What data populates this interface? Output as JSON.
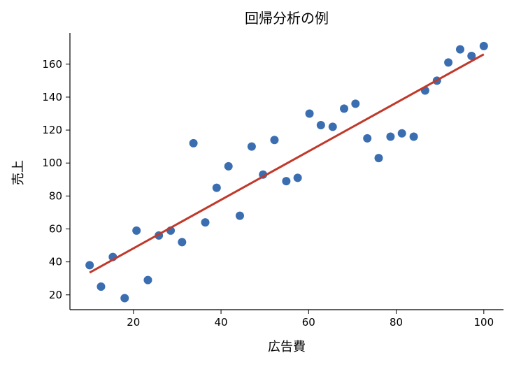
{
  "chart_data": {
    "type": "scatter",
    "title": "回帰分析の例",
    "xlabel": "広告費",
    "ylabel": "売上",
    "xlim": [
      5.5,
      104.5
    ],
    "ylim": [
      11,
      179
    ],
    "xticks": [
      20,
      40,
      60,
      80,
      100
    ],
    "yticks": [
      20,
      40,
      60,
      80,
      100,
      120,
      140,
      160
    ],
    "grid": false,
    "legend": "none",
    "series": [
      {
        "kind": "scatter",
        "color": "#3a6eb0",
        "points": [
          [
            10.0,
            38
          ],
          [
            12.6,
            25
          ],
          [
            15.3,
            43
          ],
          [
            18.0,
            18
          ],
          [
            20.7,
            59
          ],
          [
            23.3,
            29
          ],
          [
            25.8,
            56
          ],
          [
            28.5,
            59
          ],
          [
            31.1,
            52
          ],
          [
            33.7,
            112
          ],
          [
            36.4,
            64
          ],
          [
            39.0,
            85
          ],
          [
            41.7,
            98
          ],
          [
            44.3,
            68
          ],
          [
            47.0,
            110
          ],
          [
            49.6,
            93
          ],
          [
            52.2,
            114
          ],
          [
            54.9,
            89
          ],
          [
            57.5,
            91
          ],
          [
            60.2,
            130
          ],
          [
            62.8,
            123
          ],
          [
            65.5,
            122
          ],
          [
            68.1,
            133
          ],
          [
            70.7,
            136
          ],
          [
            73.4,
            115
          ],
          [
            76.0,
            103
          ],
          [
            78.7,
            116
          ],
          [
            81.3,
            118
          ],
          [
            84.0,
            116
          ],
          [
            86.6,
            144
          ],
          [
            89.3,
            150
          ],
          [
            91.9,
            161
          ],
          [
            94.6,
            169
          ],
          [
            97.2,
            165
          ],
          [
            100.0,
            171
          ]
        ]
      },
      {
        "kind": "line",
        "color": "#c0392b",
        "points": [
          [
            10.0,
            33.5
          ],
          [
            100.0,
            166
          ]
        ]
      }
    ]
  }
}
